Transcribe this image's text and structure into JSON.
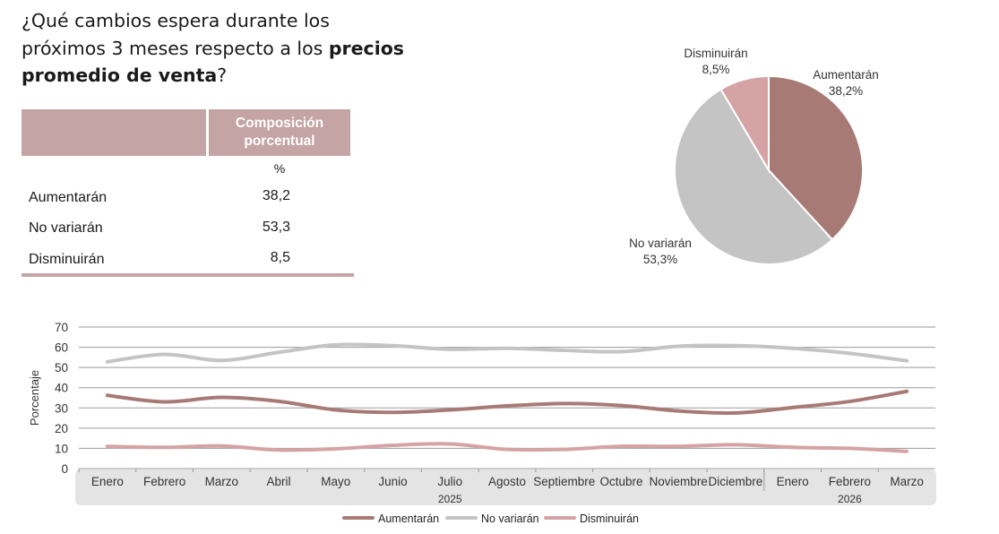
{
  "question": {
    "line1": "¿Qué cambios espera durante los",
    "line2_pre": "próximos 3 meses respecto a los ",
    "line2_bold": "precios",
    "line3_bold": "promedio de venta",
    "line3_post": "?"
  },
  "table": {
    "header_l1": "Composición",
    "header_l2": "porcentual",
    "unit": "%",
    "rows": [
      {
        "label": "Aumentarán",
        "value": "38,2"
      },
      {
        "label": "No variarán",
        "value": "53,3"
      },
      {
        "label": "Disminuirán",
        "value": "8,5"
      }
    ]
  },
  "chart_data": [
    {
      "type": "pie",
      "slices": [
        {
          "label": "Aumentarán",
          "value": 38.2,
          "value_label": "38,2%",
          "color": "#a87a76"
        },
        {
          "label": "No variarán",
          "value": 53.3,
          "value_label": "53,3%",
          "color": "#c4c4c4"
        },
        {
          "label": "Disminuirán",
          "value": 8.5,
          "value_label": "8,5%",
          "color": "#d5a3a4"
        }
      ]
    },
    {
      "type": "line",
      "ylabel": "Porcentaje",
      "ylim": [
        0,
        70
      ],
      "yticks": [
        0,
        10,
        20,
        30,
        40,
        50,
        60,
        70
      ],
      "categories": [
        "Enero",
        "Febrero",
        "Marzo",
        "Abril",
        "Mayo",
        "Junio",
        "Julio",
        "Agosto",
        "Septiembre",
        "Octubre",
        "Noviembre",
        "Diciembre",
        "Enero",
        "Febrero",
        "Marzo"
      ],
      "year_groups": [
        {
          "label": "2025",
          "center_index": 6
        },
        {
          "label": "2026",
          "center_index": 13
        }
      ],
      "series": [
        {
          "name": "Aumentarán",
          "color": "#a87a76",
          "values": [
            36.2,
            33.0,
            35.2,
            33.3,
            29.0,
            27.8,
            29.0,
            31.0,
            32.2,
            31.2,
            28.5,
            27.5,
            30.2,
            33.2,
            38.2
          ]
        },
        {
          "name": "No variarán",
          "color": "#c4c4c4",
          "values": [
            52.8,
            56.5,
            53.5,
            57.5,
            61.2,
            60.8,
            59.0,
            59.5,
            58.5,
            57.8,
            60.5,
            60.8,
            59.5,
            57.0,
            53.3
          ]
        },
        {
          "name": "Disminuirán",
          "color": "#d5a3a4",
          "values": [
            11.0,
            10.5,
            11.2,
            9.2,
            9.8,
            11.5,
            12.2,
            9.5,
            9.5,
            11.0,
            11.0,
            11.8,
            10.5,
            10.0,
            8.5
          ]
        }
      ],
      "legend": [
        "Aumentarán",
        "No variarán",
        "Disminuirán"
      ]
    }
  ]
}
